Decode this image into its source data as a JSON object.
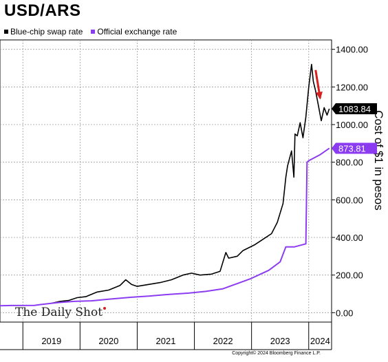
{
  "chart_data": {
    "type": "line",
    "title": "USD/ARS",
    "ylabel": "Cost of $1 in pesos",
    "ylim": [
      -50,
      1450
    ],
    "yticks": [
      "1400.00",
      "1200.00",
      "1000.00",
      "800.00",
      "600.00",
      "400.00",
      "200.00",
      "0.00"
    ],
    "ytick_values": [
      1400,
      1200,
      1000,
      800,
      600,
      400,
      200,
      0
    ],
    "xlim": [
      2018.6,
      2024.4
    ],
    "years": [
      "2019",
      "2020",
      "2021",
      "2022",
      "2023",
      "2024"
    ],
    "series": [
      {
        "name": "Blue-chip swap rate",
        "color": "#000000",
        "last_value_label": "1083.84",
        "points": [
          [
            2019.5,
            50
          ],
          [
            2019.65,
            60
          ],
          [
            2019.8,
            65
          ],
          [
            2019.95,
            80
          ],
          [
            2020.1,
            85
          ],
          [
            2020.3,
            110
          ],
          [
            2020.5,
            120
          ],
          [
            2020.7,
            145
          ],
          [
            2020.8,
            175
          ],
          [
            2020.9,
            150
          ],
          [
            2021.0,
            140
          ],
          [
            2021.2,
            150
          ],
          [
            2021.4,
            160
          ],
          [
            2021.6,
            175
          ],
          [
            2021.8,
            200
          ],
          [
            2021.95,
            210
          ],
          [
            2022.1,
            200
          ],
          [
            2022.3,
            205
          ],
          [
            2022.45,
            220
          ],
          [
            2022.55,
            320
          ],
          [
            2022.6,
            290
          ],
          [
            2022.75,
            300
          ],
          [
            2022.85,
            330
          ],
          [
            2022.95,
            345
          ],
          [
            2023.05,
            360
          ],
          [
            2023.2,
            390
          ],
          [
            2023.35,
            420
          ],
          [
            2023.45,
            480
          ],
          [
            2023.55,
            580
          ],
          [
            2023.6,
            720
          ],
          [
            2023.63,
            780
          ],
          [
            2023.7,
            860
          ],
          [
            2023.74,
            720
          ],
          [
            2023.76,
            950
          ],
          [
            2023.8,
            940
          ],
          [
            2023.85,
            1010
          ],
          [
            2023.9,
            930
          ],
          [
            2023.95,
            1040
          ],
          [
            2024.0,
            1200
          ],
          [
            2024.05,
            1320
          ],
          [
            2024.08,
            1230
          ],
          [
            2024.12,
            1180
          ],
          [
            2024.17,
            1100
          ],
          [
            2024.22,
            1020
          ],
          [
            2024.27,
            1090
          ],
          [
            2024.32,
            1050
          ],
          [
            2024.36,
            1084
          ]
        ]
      },
      {
        "name": "Official exchange rate",
        "color": "#8c3cf0",
        "last_value_label": "873.81",
        "points": [
          [
            2018.6,
            37
          ],
          [
            2018.8,
            38
          ],
          [
            2019.2,
            39
          ],
          [
            2019.3,
            43
          ],
          [
            2019.6,
            53
          ],
          [
            2019.9,
            60
          ],
          [
            2020.2,
            63
          ],
          [
            2020.5,
            72
          ],
          [
            2020.9,
            82
          ],
          [
            2021.2,
            88
          ],
          [
            2021.5,
            96
          ],
          [
            2021.9,
            104
          ],
          [
            2022.2,
            113
          ],
          [
            2022.5,
            127
          ],
          [
            2022.8,
            160
          ],
          [
            2022.98,
            180
          ],
          [
            2023.3,
            225
          ],
          [
            2023.5,
            270
          ],
          [
            2023.6,
            350
          ],
          [
            2023.75,
            350
          ],
          [
            2023.95,
            366
          ],
          [
            2023.97,
            800
          ],
          [
            2024.0,
            808
          ],
          [
            2024.2,
            840
          ],
          [
            2024.36,
            874
          ]
        ]
      }
    ],
    "annotation": "red arrow pointing down near recent peak",
    "grid": true,
    "legend_position": "top-left"
  },
  "logo_text": "The Daily Shot",
  "copyright": "Copyright© 2024 Bloomberg Finance L.P."
}
